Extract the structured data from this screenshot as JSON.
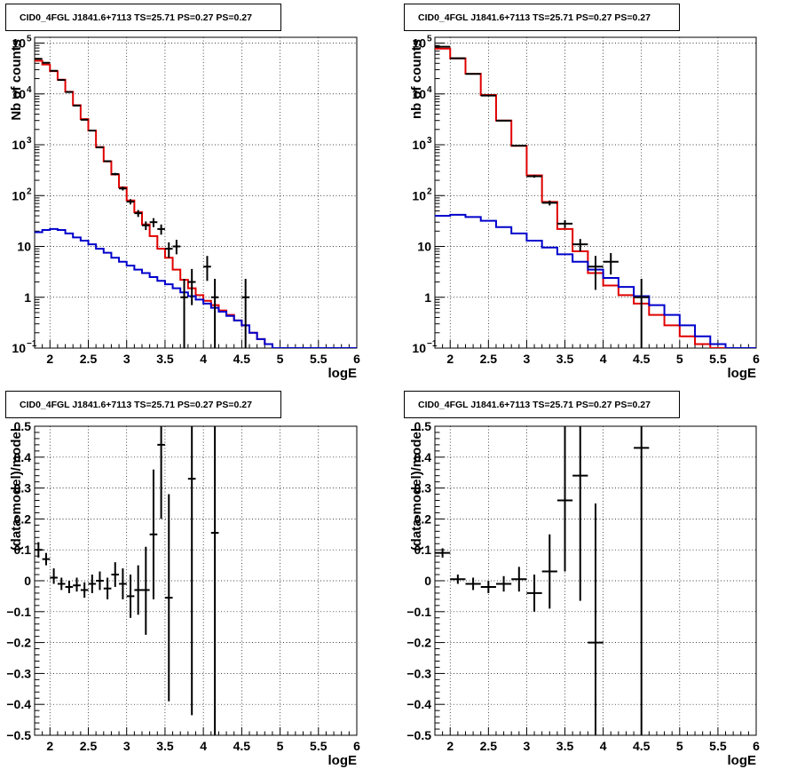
{
  "panel_title": "CID0_4FGL J1841.6+7113 TS=25.71 PS=0.27 PS=0.27",
  "colors": {
    "data": "#000000",
    "total_model": "#e00000",
    "source_model": "#0000cc",
    "grid": "#000000"
  },
  "chart_data": [
    {
      "type": "line",
      "title": "CID0_4FGL J1841.6+7113 TS=25.71 PS=0.27 PS=0.27",
      "xlabel": "logE",
      "ylabel": "Nb of counts",
      "log_y": true,
      "xlim": [
        1.8,
        6
      ],
      "ylim": [
        0.1,
        130000
      ],
      "grid": true,
      "x_ticks": [
        2,
        2.5,
        3,
        3.5,
        4,
        4.5,
        5,
        5.5,
        6
      ],
      "x_tick_labels": [
        "2",
        "2.5",
        "3",
        "3.5",
        "4",
        "4.5",
        "5",
        "5.5",
        "6"
      ],
      "y_ticks": [
        0.1,
        1,
        10,
        100,
        1000,
        10000,
        100000
      ],
      "y_tick_labels": [
        {
          "base": "10",
          "exp": "−1"
        },
        {
          "base": "1",
          "exp": ""
        },
        {
          "base": "10",
          "exp": ""
        },
        {
          "base": "10",
          "exp": "2"
        },
        {
          "base": "10",
          "exp": "3"
        },
        {
          "base": "10",
          "exp": "4"
        },
        {
          "base": "10",
          "exp": "5"
        }
      ],
      "bin_edges": [
        1.8,
        1.9,
        2.0,
        2.1,
        2.2,
        2.3,
        2.4,
        2.5,
        2.6,
        2.7,
        2.8,
        2.9,
        3.0,
        3.1,
        3.2,
        3.3,
        3.4,
        3.5,
        3.6,
        3.7,
        3.8,
        3.9,
        4.0,
        4.1,
        4.2,
        4.3,
        4.4,
        4.5,
        4.6,
        4.7,
        4.8,
        4.9,
        5.0,
        5.1,
        5.2,
        5.3,
        5.4,
        5.5,
        5.6,
        5.7,
        5.8,
        5.9,
        6.0
      ],
      "series": [
        {
          "role": "total_model",
          "values": [
            45000,
            38000,
            28000,
            19000,
            11000,
            6000,
            3200,
            1900,
            900,
            470,
            260,
            145,
            80,
            47,
            27,
            16,
            9,
            6,
            3.5,
            2.2,
            1.5,
            1.1,
            0.85,
            0.7,
            0.55,
            0.45,
            0.35,
            0.28,
            0.2,
            0.15,
            0.12,
            0.1,
            0.1,
            0.1,
            0.1,
            0.1,
            0.1,
            0.1,
            0.1,
            0.1,
            0.1,
            0.1
          ]
        },
        {
          "role": "source_model",
          "values": [
            19,
            21,
            22,
            21,
            18,
            15,
            13,
            11,
            9,
            7.5,
            6,
            5,
            4.2,
            3.5,
            3,
            2.5,
            2.1,
            1.8,
            1.5,
            1.25,
            1.05,
            0.9,
            0.75,
            0.62,
            0.52,
            0.43,
            0.35,
            0.28,
            0.2,
            0.15,
            0.12,
            0.1,
            0.1,
            0.1,
            0.1,
            0.1,
            0.1,
            0.1,
            0.1,
            0.1,
            0.1,
            0.1
          ]
        },
        {
          "role": "data",
          "points": [
            {
              "x": 1.85,
              "y": 49000,
              "ylo": 48000,
              "yhi": 50000
            },
            {
              "x": 1.95,
              "y": 41000,
              "ylo": 40000,
              "yhi": 42000
            },
            {
              "x": 2.05,
              "y": 28500,
              "ylo": 28000,
              "yhi": 29000
            },
            {
              "x": 2.15,
              "y": 18800,
              "ylo": 18500,
              "yhi": 19100
            },
            {
              "x": 2.25,
              "y": 10900,
              "ylo": 10700,
              "yhi": 11100
            },
            {
              "x": 2.35,
              "y": 5900,
              "ylo": 5800,
              "yhi": 6000
            },
            {
              "x": 2.45,
              "y": 3100,
              "ylo": 3050,
              "yhi": 3150
            },
            {
              "x": 2.55,
              "y": 1900,
              "ylo": 1850,
              "yhi": 1950
            },
            {
              "x": 2.65,
              "y": 890,
              "ylo": 860,
              "yhi": 920
            },
            {
              "x": 2.75,
              "y": 475,
              "ylo": 455,
              "yhi": 495
            },
            {
              "x": 2.85,
              "y": 265,
              "ylo": 250,
              "yhi": 280
            },
            {
              "x": 2.95,
              "y": 138,
              "ylo": 126,
              "yhi": 150
            },
            {
              "x": 3.05,
              "y": 76,
              "ylo": 67,
              "yhi": 85
            },
            {
              "x": 3.15,
              "y": 45,
              "ylo": 38,
              "yhi": 52
            },
            {
              "x": 3.25,
              "y": 26,
              "ylo": 21,
              "yhi": 31
            },
            {
              "x": 3.35,
              "y": 30,
              "ylo": 24,
              "yhi": 36
            },
            {
              "x": 3.45,
              "y": 22,
              "ylo": 17,
              "yhi": 27
            },
            {
              "x": 3.55,
              "y": 9,
              "ylo": 6,
              "yhi": 12
            },
            {
              "x": 3.65,
              "y": 10,
              "ylo": 7,
              "yhi": 13.5
            },
            {
              "x": 3.75,
              "y": 1,
              "ylo": 0.1,
              "yhi": 2.3
            },
            {
              "x": 3.85,
              "y": 2,
              "ylo": 0.7,
              "yhi": 3.6
            },
            {
              "x": 4.05,
              "y": 4,
              "ylo": 2.1,
              "yhi": 6.5
            },
            {
              "x": 4.15,
              "y": 1,
              "ylo": 0.1,
              "yhi": 2.3
            },
            {
              "x": 4.55,
              "y": 1,
              "ylo": 0.1,
              "yhi": 2.3
            }
          ]
        }
      ]
    },
    {
      "type": "line",
      "title": "CID0_4FGL J1841.6+7113 TS=25.71 PS=0.27 PS=0.27",
      "xlabel": "logE",
      "ylabel": "nb of counts",
      "log_y": true,
      "xlim": [
        1.8,
        6
      ],
      "ylim": [
        0.1,
        130000
      ],
      "grid": true,
      "x_ticks": [
        2,
        2.5,
        3,
        3.5,
        4,
        4.5,
        5,
        5.5,
        6
      ],
      "x_tick_labels": [
        "2",
        "2.5",
        "3",
        "3.5",
        "4",
        "4.5",
        "5",
        "5.5",
        "6"
      ],
      "y_ticks": [
        0.1,
        1,
        10,
        100,
        1000,
        10000,
        100000
      ],
      "y_tick_labels": [
        {
          "base": "10",
          "exp": "−1"
        },
        {
          "base": "1",
          "exp": ""
        },
        {
          "base": "10",
          "exp": ""
        },
        {
          "base": "10",
          "exp": "2"
        },
        {
          "base": "10",
          "exp": "3"
        },
        {
          "base": "10",
          "exp": "4"
        },
        {
          "base": "10",
          "exp": "5"
        }
      ],
      "bin_edges": [
        1.8,
        2.0,
        2.2,
        2.4,
        2.6,
        2.8,
        3.0,
        3.2,
        3.4,
        3.6,
        3.8,
        4.0,
        4.2,
        4.4,
        4.6,
        4.8,
        5.0,
        5.2,
        5.4,
        5.6,
        5.8,
        6.0
      ],
      "series": [
        {
          "role": "total_model",
          "values": [
            78000,
            50000,
            25000,
            9500,
            3000,
            950,
            250,
            75,
            22,
            8,
            3,
            1.7,
            1.1,
            0.75,
            0.45,
            0.28,
            0.17,
            0.12,
            0.1,
            0.1,
            0.1
          ]
        },
        {
          "role": "source_model",
          "values": [
            40,
            42,
            38,
            32,
            24,
            18,
            13,
            9.5,
            7,
            5,
            3.5,
            2.4,
            1.6,
            1.05,
            0.7,
            0.45,
            0.28,
            0.17,
            0.12,
            0.1,
            0.1
          ]
        },
        {
          "role": "data",
          "points": [
            {
              "x": 1.9,
              "y": 85000,
              "ylo": 84700,
              "yhi": 85300
            },
            {
              "x": 2.1,
              "y": 50200,
              "ylo": 50000,
              "yhi": 50400
            },
            {
              "x": 2.3,
              "y": 24800,
              "ylo": 24600,
              "yhi": 25000
            },
            {
              "x": 2.5,
              "y": 9300,
              "ylo": 9200,
              "yhi": 9400
            },
            {
              "x": 2.7,
              "y": 2980,
              "ylo": 2920,
              "yhi": 3040
            },
            {
              "x": 2.9,
              "y": 960,
              "ylo": 930,
              "yhi": 990
            },
            {
              "x": 3.1,
              "y": 240,
              "ylo": 225,
              "yhi": 255
            },
            {
              "x": 3.3,
              "y": 72,
              "ylo": 64,
              "yhi": 80
            },
            {
              "x": 3.5,
              "y": 28,
              "ylo": 23,
              "yhi": 33
            },
            {
              "x": 3.7,
              "y": 11,
              "ylo": 8,
              "yhi": 14
            },
            {
              "x": 3.9,
              "y": 4,
              "ylo": 1.4,
              "yhi": 6.5
            },
            {
              "x": 4.1,
              "y": 5,
              "ylo": 2.8,
              "yhi": 7.4
            },
            {
              "x": 4.5,
              "y": 1,
              "ylo": 0.1,
              "yhi": 2.3
            }
          ]
        }
      ]
    },
    {
      "type": "scatter",
      "title": "CID0_4FGL J1841.6+7113 TS=25.71 PS=0.27 PS=0.27",
      "xlabel": "logE",
      "ylabel": "(data-model)/model",
      "log_y": false,
      "xlim": [
        1.8,
        6
      ],
      "ylim": [
        -0.5,
        0.5
      ],
      "grid": true,
      "x_ticks": [
        2,
        2.5,
        3,
        3.5,
        4,
        4.5,
        5,
        5.5,
        6
      ],
      "x_tick_labels": [
        "2",
        "2.5",
        "3",
        "3.5",
        "4",
        "4.5",
        "5",
        "5.5",
        "6"
      ],
      "y_ticks": [
        -0.5,
        -0.4,
        -0.3,
        -0.2,
        -0.1,
        0,
        0.1,
        0.2,
        0.3,
        0.4,
        0.5
      ],
      "y_tick_labels": [
        "−0.5",
        "−0.4",
        "−0.3",
        "−0.2",
        "−0.1",
        "0",
        "0.1",
        "0.2",
        "0.3",
        "0.4",
        "0.5"
      ],
      "series": [
        {
          "role": "data",
          "points": [
            {
              "x": 1.85,
              "y": 0.1,
              "ylo": 0.075,
              "yhi": 0.125
            },
            {
              "x": 1.95,
              "y": 0.07,
              "ylo": 0.05,
              "yhi": 0.09
            },
            {
              "x": 2.05,
              "y": 0.01,
              "ylo": -0.01,
              "yhi": 0.04
            },
            {
              "x": 2.15,
              "y": -0.01,
              "ylo": -0.03,
              "yhi": 0.01
            },
            {
              "x": 2.25,
              "y": -0.02,
              "ylo": -0.04,
              "yhi": 0.0
            },
            {
              "x": 2.35,
              "y": -0.015,
              "ylo": -0.035,
              "yhi": 0.01
            },
            {
              "x": 2.45,
              "y": -0.03,
              "ylo": -0.055,
              "yhi": -0.005
            },
            {
              "x": 2.55,
              "y": -0.01,
              "ylo": -0.04,
              "yhi": 0.02
            },
            {
              "x": 2.65,
              "y": 0.0,
              "ylo": -0.03,
              "yhi": 0.03
            },
            {
              "x": 2.75,
              "y": -0.025,
              "ylo": -0.06,
              "yhi": 0.01
            },
            {
              "x": 2.85,
              "y": 0.02,
              "ylo": -0.02,
              "yhi": 0.06
            },
            {
              "x": 2.95,
              "y": -0.01,
              "ylo": -0.06,
              "yhi": 0.04
            },
            {
              "x": 3.05,
              "y": -0.05,
              "ylo": -0.12,
              "yhi": 0.02
            },
            {
              "x": 3.15,
              "y": -0.03,
              "ylo": -0.11,
              "yhi": 0.05
            },
            {
              "x": 3.25,
              "y": -0.03,
              "ylo": -0.175,
              "yhi": 0.11
            },
            {
              "x": 3.35,
              "y": 0.15,
              "ylo": -0.06,
              "yhi": 0.36
            },
            {
              "x": 3.45,
              "y": 0.44,
              "ylo": 0.2,
              "yhi": 0.5
            },
            {
              "x": 3.55,
              "y": -0.055,
              "ylo": -0.39,
              "yhi": 0.28
            },
            {
              "x": 3.85,
              "y": 0.33,
              "ylo": -0.435,
              "yhi": 0.5
            },
            {
              "x": 4.15,
              "y": 0.155,
              "ylo": -0.5,
              "yhi": 0.5
            }
          ]
        }
      ]
    },
    {
      "type": "scatter",
      "title": "CID0_4FGL J1841.6+7113 TS=25.71 PS=0.27 PS=0.27",
      "xlabel": "logE",
      "ylabel": "(data-model)/model",
      "log_y": false,
      "xlim": [
        1.8,
        6
      ],
      "ylim": [
        -0.5,
        0.5
      ],
      "grid": true,
      "x_ticks": [
        2,
        2.5,
        3,
        3.5,
        4,
        4.5,
        5,
        5.5,
        6
      ],
      "x_tick_labels": [
        "2",
        "2.5",
        "3",
        "3.5",
        "4",
        "4.5",
        "5",
        "5.5",
        "6"
      ],
      "y_ticks": [
        -0.5,
        -0.4,
        -0.3,
        -0.2,
        -0.1,
        0,
        0.1,
        0.2,
        0.3,
        0.4,
        0.5
      ],
      "y_tick_labels": [
        "−0.5",
        "−0.4",
        "−0.3",
        "−0.2",
        "−0.1",
        "0",
        "0.1",
        "0.2",
        "0.3",
        "0.4",
        "0.5"
      ],
      "series": [
        {
          "role": "data",
          "points": [
            {
              "x": 1.9,
              "y": 0.09,
              "ylo": 0.075,
              "yhi": 0.105
            },
            {
              "x": 2.1,
              "y": 0.005,
              "ylo": -0.01,
              "yhi": 0.02
            },
            {
              "x": 2.3,
              "y": -0.01,
              "ylo": -0.03,
              "yhi": 0.01
            },
            {
              "x": 2.5,
              "y": -0.02,
              "ylo": -0.04,
              "yhi": 0.0
            },
            {
              "x": 2.7,
              "y": -0.01,
              "ylo": -0.035,
              "yhi": 0.015
            },
            {
              "x": 2.9,
              "y": 0.005,
              "ylo": -0.035,
              "yhi": 0.045
            },
            {
              "x": 3.1,
              "y": -0.04,
              "ylo": -0.1,
              "yhi": 0.02
            },
            {
              "x": 3.3,
              "y": 0.03,
              "ylo": -0.09,
              "yhi": 0.15
            },
            {
              "x": 3.5,
              "y": 0.26,
              "ylo": 0.03,
              "yhi": 0.5
            },
            {
              "x": 3.7,
              "y": 0.34,
              "ylo": -0.065,
              "yhi": 0.5
            },
            {
              "x": 3.9,
              "y": -0.2,
              "ylo": -0.5,
              "yhi": 0.25
            },
            {
              "x": 4.5,
              "y": 0.43,
              "ylo": -0.5,
              "yhi": 0.5
            }
          ]
        }
      ]
    }
  ]
}
